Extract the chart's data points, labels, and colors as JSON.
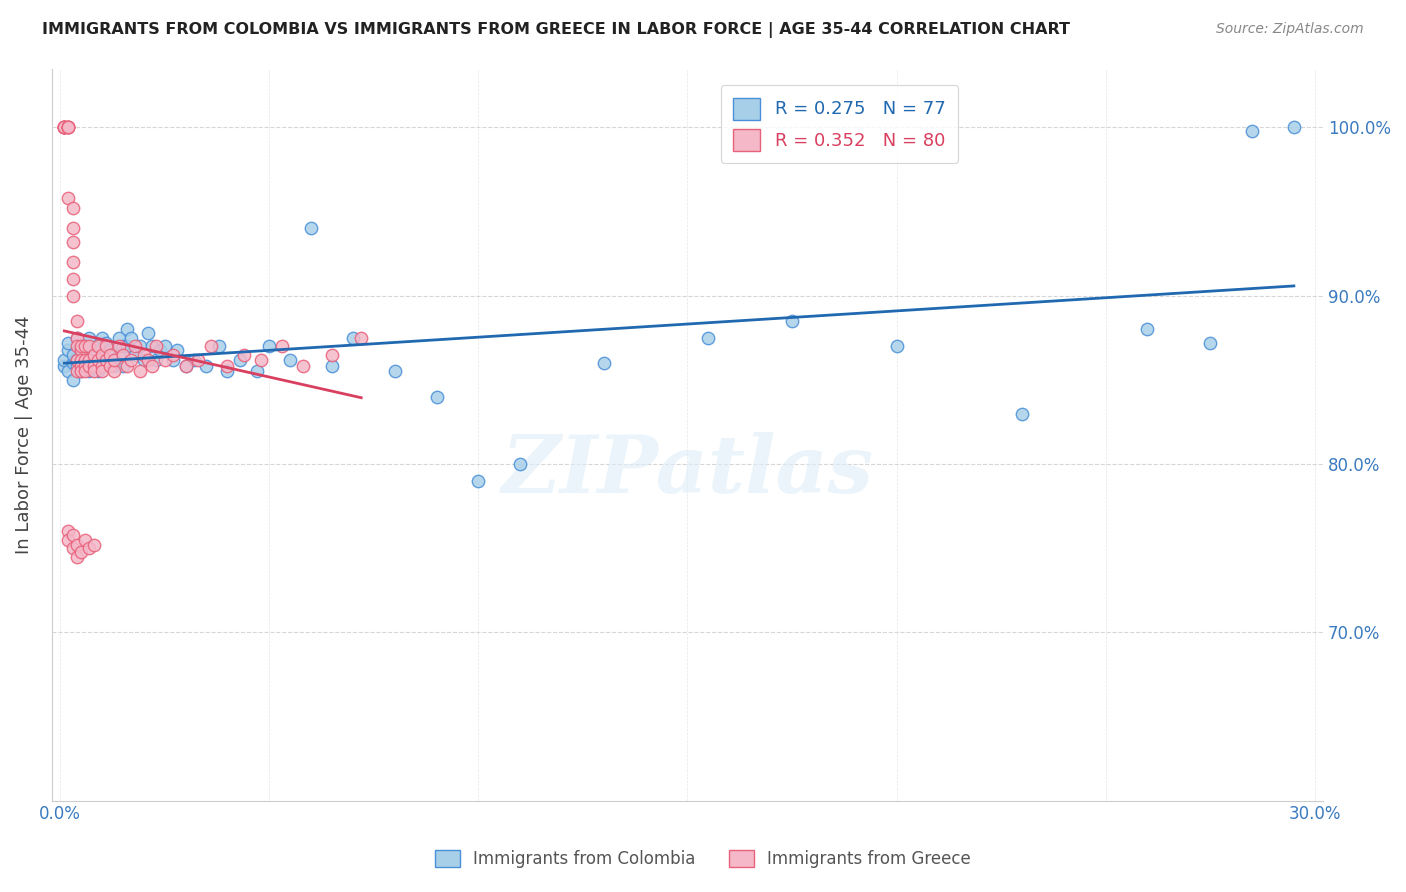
{
  "title": "IMMIGRANTS FROM COLOMBIA VS IMMIGRANTS FROM GREECE IN LABOR FORCE | AGE 35-44 CORRELATION CHART",
  "source": "Source: ZipAtlas.com",
  "ylabel": "In Labor Force | Age 35-44",
  "x_min": 0.0,
  "x_max": 0.3,
  "y_min": 0.6,
  "y_max": 1.035,
  "x_ticks": [
    0.0,
    0.05,
    0.1,
    0.15,
    0.2,
    0.25,
    0.3
  ],
  "y_ticks": [
    0.7,
    0.8,
    0.9,
    1.0
  ],
  "y_tick_labels": [
    "70.0%",
    "80.0%",
    "90.0%",
    "100.0%"
  ],
  "colombia_color": "#a8cfe8",
  "greece_color": "#f4b8c8",
  "colombia_edge_color": "#4a90d9",
  "greece_edge_color": "#e8607a",
  "colombia_line_color": "#2068b0",
  "greece_line_color": "#d94060",
  "colombia_R": 0.275,
  "colombia_N": 77,
  "greece_R": 0.352,
  "greece_N": 80,
  "watermark": "ZIPatlas",
  "colombia_scatter_x": [
    0.001,
    0.001,
    0.002,
    0.002,
    0.002,
    0.003,
    0.003,
    0.003,
    0.004,
    0.004,
    0.004,
    0.005,
    0.005,
    0.005,
    0.005,
    0.006,
    0.006,
    0.006,
    0.007,
    0.007,
    0.007,
    0.008,
    0.008,
    0.008,
    0.009,
    0.009,
    0.01,
    0.01,
    0.01,
    0.011,
    0.011,
    0.012,
    0.012,
    0.013,
    0.013,
    0.014,
    0.014,
    0.015,
    0.015,
    0.016,
    0.016,
    0.017,
    0.018,
    0.019,
    0.02,
    0.021,
    0.022,
    0.023,
    0.024,
    0.025,
    0.027,
    0.028,
    0.03,
    0.032,
    0.035,
    0.038,
    0.04,
    0.043,
    0.047,
    0.05,
    0.055,
    0.06,
    0.065,
    0.07,
    0.08,
    0.09,
    0.1,
    0.11,
    0.13,
    0.155,
    0.175,
    0.2,
    0.23,
    0.26,
    0.275,
    0.285,
    0.295
  ],
  "colombia_scatter_y": [
    0.858,
    0.862,
    0.855,
    0.868,
    0.872,
    0.86,
    0.85,
    0.865,
    0.858,
    0.862,
    0.875,
    0.855,
    0.868,
    0.858,
    0.862,
    0.87,
    0.858,
    0.865,
    0.86,
    0.855,
    0.875,
    0.862,
    0.858,
    0.868,
    0.855,
    0.87,
    0.86,
    0.858,
    0.875,
    0.865,
    0.872,
    0.86,
    0.868,
    0.858,
    0.862,
    0.875,
    0.865,
    0.87,
    0.858,
    0.88,
    0.87,
    0.875,
    0.865,
    0.87,
    0.862,
    0.878,
    0.87,
    0.862,
    0.868,
    0.87,
    0.862,
    0.868,
    0.858,
    0.862,
    0.858,
    0.87,
    0.855,
    0.862,
    0.855,
    0.87,
    0.862,
    0.94,
    0.858,
    0.875,
    0.855,
    0.84,
    0.79,
    0.8,
    0.86,
    0.875,
    0.885,
    0.87,
    0.83,
    0.88,
    0.872,
    0.998,
    1.0
  ],
  "greece_scatter_x": [
    0.001,
    0.001,
    0.001,
    0.001,
    0.001,
    0.001,
    0.002,
    0.002,
    0.002,
    0.002,
    0.002,
    0.003,
    0.003,
    0.003,
    0.003,
    0.003,
    0.003,
    0.004,
    0.004,
    0.004,
    0.004,
    0.004,
    0.005,
    0.005,
    0.005,
    0.005,
    0.005,
    0.006,
    0.006,
    0.006,
    0.006,
    0.007,
    0.007,
    0.007,
    0.008,
    0.008,
    0.008,
    0.009,
    0.009,
    0.01,
    0.01,
    0.01,
    0.011,
    0.011,
    0.012,
    0.012,
    0.013,
    0.013,
    0.014,
    0.015,
    0.016,
    0.017,
    0.018,
    0.019,
    0.02,
    0.021,
    0.022,
    0.023,
    0.025,
    0.027,
    0.03,
    0.033,
    0.036,
    0.04,
    0.044,
    0.048,
    0.053,
    0.058,
    0.065,
    0.072,
    0.002,
    0.002,
    0.003,
    0.003,
    0.004,
    0.004,
    0.005,
    0.006,
    0.007,
    0.008
  ],
  "greece_scatter_y": [
    1.0,
    1.0,
    1.0,
    1.0,
    1.0,
    1.0,
    1.0,
    1.0,
    1.0,
    1.0,
    0.958,
    0.952,
    0.94,
    0.932,
    0.92,
    0.91,
    0.9,
    0.885,
    0.875,
    0.87,
    0.862,
    0.855,
    0.868,
    0.862,
    0.858,
    0.855,
    0.87,
    0.862,
    0.858,
    0.87,
    0.855,
    0.862,
    0.858,
    0.87,
    0.865,
    0.858,
    0.855,
    0.862,
    0.87,
    0.865,
    0.858,
    0.855,
    0.862,
    0.87,
    0.858,
    0.865,
    0.855,
    0.862,
    0.87,
    0.865,
    0.858,
    0.862,
    0.87,
    0.855,
    0.865,
    0.862,
    0.858,
    0.87,
    0.862,
    0.865,
    0.858,
    0.862,
    0.87,
    0.858,
    0.865,
    0.862,
    0.87,
    0.858,
    0.865,
    0.875,
    0.76,
    0.755,
    0.75,
    0.758,
    0.745,
    0.752,
    0.748,
    0.755,
    0.75,
    0.752
  ]
}
